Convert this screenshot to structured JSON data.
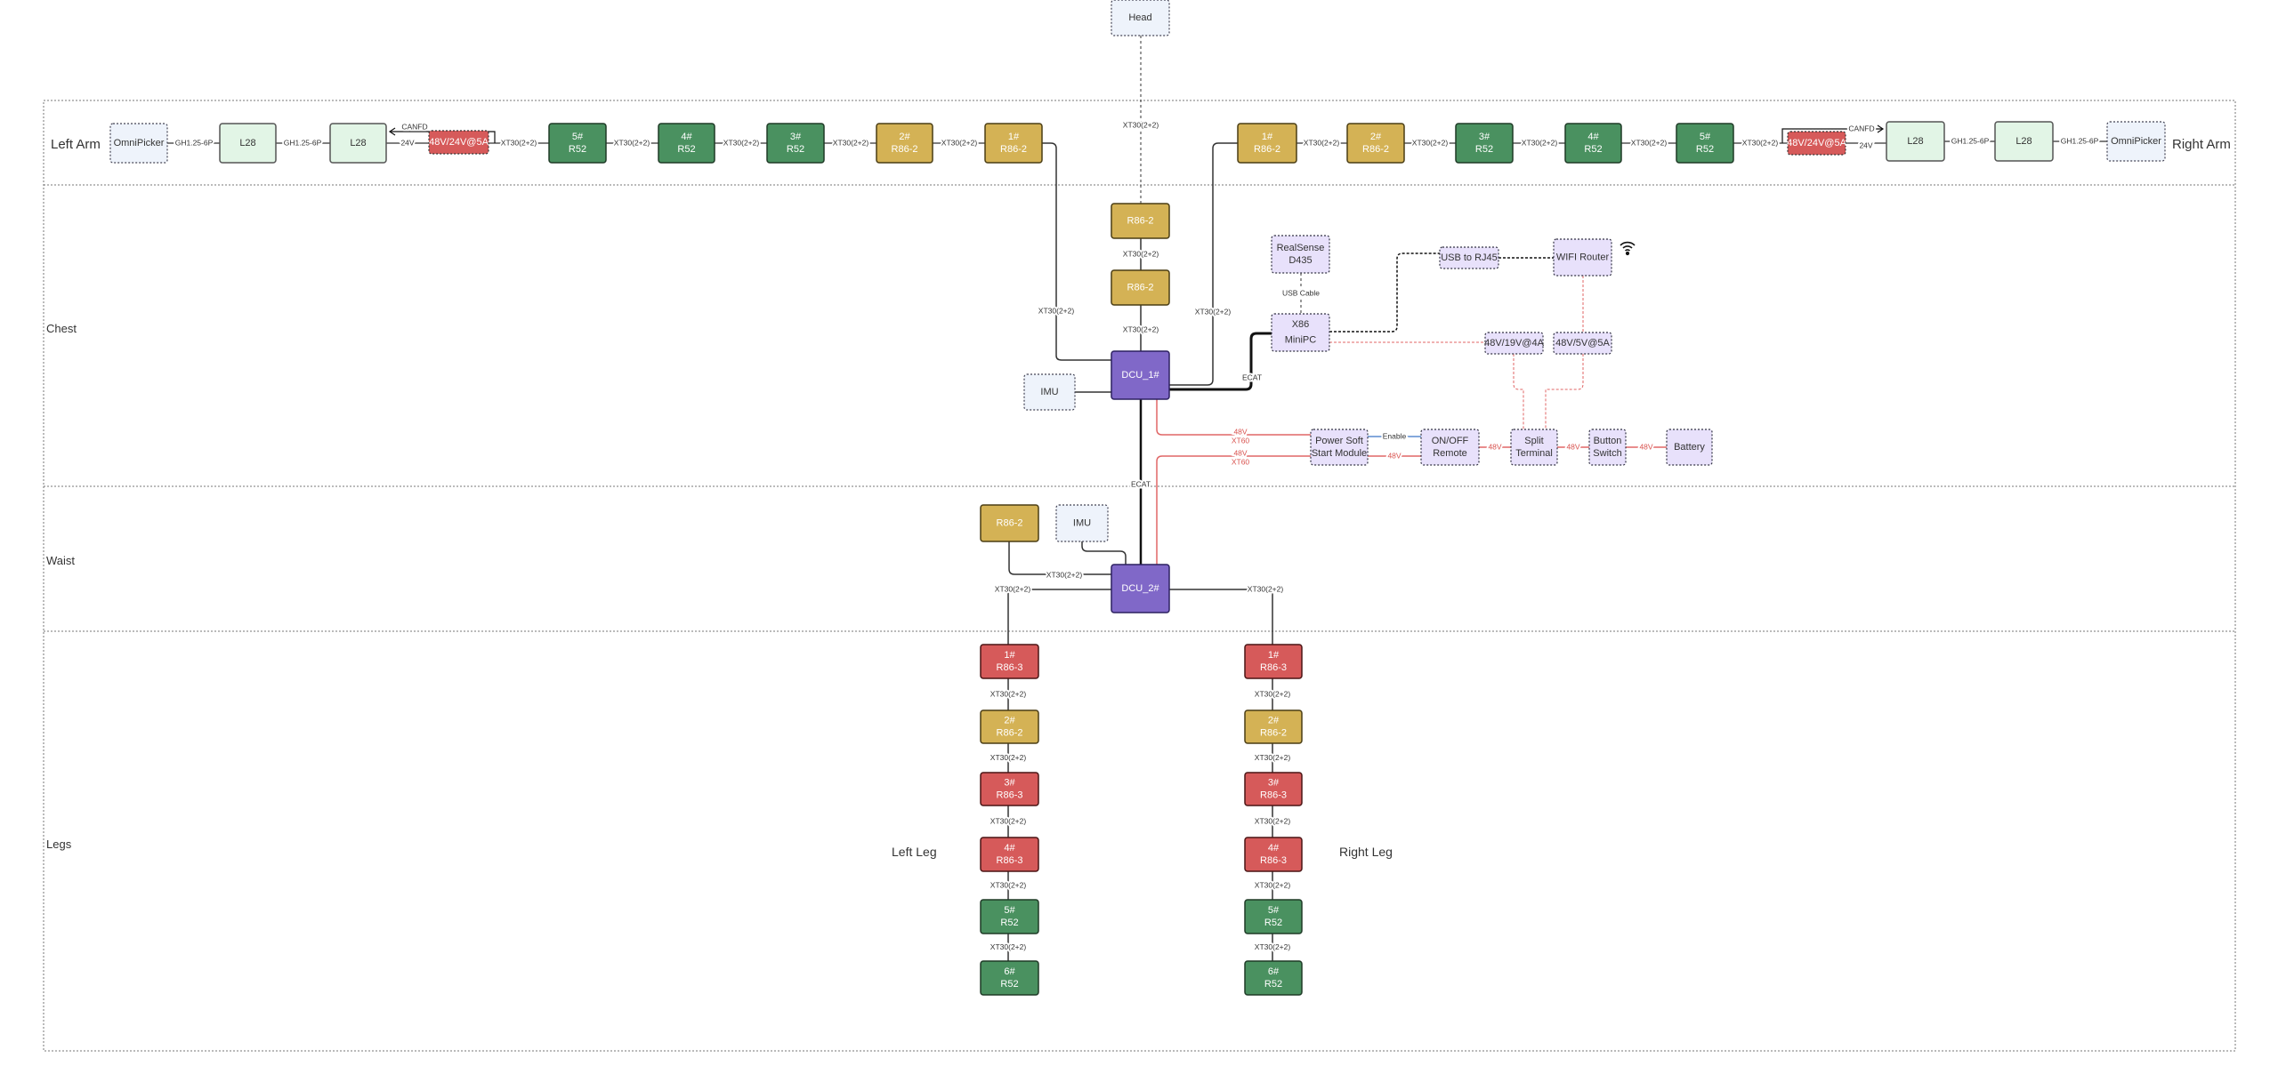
{
  "sections": {
    "left_arm": "Left Arm",
    "right_arm": "Right Arm",
    "chest": "Chest",
    "waist": "Waist",
    "legs": "Legs",
    "left_leg": "Left Leg",
    "right_leg": "Right Leg"
  },
  "colors": {
    "r52": "#4a9160",
    "r86_2": "#d4b255",
    "r86_3": "#d65a5a",
    "dcu": "#8068c8",
    "psu": "#d65a5a",
    "info": "#eef3fb",
    "l28": "#e2f5e6",
    "compute": "#e8e1fb",
    "power_line": "#e06666",
    "enable_line": "#5b8bd0"
  },
  "nodes": [
    {
      "id": "head",
      "lines": [
        "Head"
      ],
      "kind": "info"
    },
    {
      "id": "la_op",
      "lines": [
        "OmniPicker"
      ],
      "kind": "info"
    },
    {
      "id": "la_l28a",
      "lines": [
        "L28"
      ],
      "kind": "l28"
    },
    {
      "id": "la_l28b",
      "lines": [
        "L28"
      ],
      "kind": "l28"
    },
    {
      "id": "la_psu",
      "lines": [
        "48V/24V@5A"
      ],
      "kind": "psu"
    },
    {
      "id": "la_j5",
      "lines": [
        "5#",
        "R52"
      ],
      "kind": "r52"
    },
    {
      "id": "la_j4",
      "lines": [
        "4#",
        "R52"
      ],
      "kind": "r52"
    },
    {
      "id": "la_j3",
      "lines": [
        "3#",
        "R52"
      ],
      "kind": "r52"
    },
    {
      "id": "la_j2",
      "lines": [
        "2#",
        "R86-2"
      ],
      "kind": "r86_2"
    },
    {
      "id": "la_j1",
      "lines": [
        "1#",
        "R86-2"
      ],
      "kind": "r86_2"
    },
    {
      "id": "ra_j1",
      "lines": [
        "1#",
        "R86-2"
      ],
      "kind": "r86_2"
    },
    {
      "id": "ra_j2",
      "lines": [
        "2#",
        "R86-2"
      ],
      "kind": "r86_2"
    },
    {
      "id": "ra_j3",
      "lines": [
        "3#",
        "R52"
      ],
      "kind": "r52"
    },
    {
      "id": "ra_j4",
      "lines": [
        "4#",
        "R52"
      ],
      "kind": "r52"
    },
    {
      "id": "ra_j5",
      "lines": [
        "5#",
        "R52"
      ],
      "kind": "r52"
    },
    {
      "id": "ra_psu",
      "lines": [
        "48V/24V@5A"
      ],
      "kind": "psu"
    },
    {
      "id": "ra_l28a",
      "lines": [
        "L28"
      ],
      "kind": "l28"
    },
    {
      "id": "ra_l28b",
      "lines": [
        "L28"
      ],
      "kind": "l28"
    },
    {
      "id": "ra_op",
      "lines": [
        "OmniPicker"
      ],
      "kind": "info"
    },
    {
      "id": "chest_j1",
      "lines": [
        "R86-2"
      ],
      "kind": "r86_2"
    },
    {
      "id": "chest_j2",
      "lines": [
        "R86-2"
      ],
      "kind": "r86_2"
    },
    {
      "id": "dcu1",
      "lines": [
        "DCU_1#"
      ],
      "kind": "dcu"
    },
    {
      "id": "imu1",
      "lines": [
        "IMU"
      ],
      "kind": "info"
    },
    {
      "id": "realsense",
      "lines": [
        "RealSense",
        "D435"
      ],
      "kind": "compute"
    },
    {
      "id": "minipc",
      "lines": [
        "X86",
        "MiniPC"
      ],
      "kind": "compute"
    },
    {
      "id": "usb_rj45",
      "lines": [
        "USB to RJ45"
      ],
      "kind": "compute"
    },
    {
      "id": "wifi_router",
      "lines": [
        "WIFI Router"
      ],
      "kind": "compute"
    },
    {
      "id": "conv19",
      "lines": [
        "48V/19V@4A"
      ],
      "kind": "compute"
    },
    {
      "id": "conv5",
      "lines": [
        "48V/5V@5A"
      ],
      "kind": "compute"
    },
    {
      "id": "soft_start",
      "lines": [
        "Power Soft",
        "Start Module"
      ],
      "kind": "compute"
    },
    {
      "id": "onoff",
      "lines": [
        "ON/OFF",
        "Remote"
      ],
      "kind": "compute"
    },
    {
      "id": "split",
      "lines": [
        "Split",
        "Terminal"
      ],
      "kind": "compute"
    },
    {
      "id": "button",
      "lines": [
        "Button",
        "Switch"
      ],
      "kind": "compute"
    },
    {
      "id": "battery",
      "lines": [
        "Battery"
      ],
      "kind": "compute"
    },
    {
      "id": "waist_j",
      "lines": [
        "R86-2"
      ],
      "kind": "r86_2"
    },
    {
      "id": "imu2",
      "lines": [
        "IMU"
      ],
      "kind": "info"
    },
    {
      "id": "dcu2",
      "lines": [
        "DCU_2#"
      ],
      "kind": "dcu"
    },
    {
      "id": "ll1",
      "lines": [
        "1#",
        "R86-3"
      ],
      "kind": "r86_3"
    },
    {
      "id": "ll2",
      "lines": [
        "2#",
        "R86-2"
      ],
      "kind": "r86_2"
    },
    {
      "id": "ll3",
      "lines": [
        "3#",
        "R86-3"
      ],
      "kind": "r86_3"
    },
    {
      "id": "ll4",
      "lines": [
        "4#",
        "R86-3"
      ],
      "kind": "r86_3"
    },
    {
      "id": "ll5",
      "lines": [
        "5#",
        "R52"
      ],
      "kind": "r52"
    },
    {
      "id": "ll6",
      "lines": [
        "6#",
        "R52"
      ],
      "kind": "r52"
    },
    {
      "id": "rl1",
      "lines": [
        "1#",
        "R86-3"
      ],
      "kind": "r86_3"
    },
    {
      "id": "rl2",
      "lines": [
        "2#",
        "R86-2"
      ],
      "kind": "r86_2"
    },
    {
      "id": "rl3",
      "lines": [
        "3#",
        "R86-3"
      ],
      "kind": "r86_3"
    },
    {
      "id": "rl4",
      "lines": [
        "4#",
        "R86-3"
      ],
      "kind": "r86_3"
    },
    {
      "id": "rl5",
      "lines": [
        "5#",
        "R52"
      ],
      "kind": "r52"
    },
    {
      "id": "rl6",
      "lines": [
        "6#",
        "R52"
      ],
      "kind": "r52"
    }
  ],
  "edge_labels": [
    {
      "id": "la_gh1",
      "text": "GH1.25-6P"
    },
    {
      "id": "la_gh2",
      "text": "GH1.25-6P"
    },
    {
      "id": "la_24v",
      "text": "24V"
    },
    {
      "id": "la_canfd",
      "text": "CANFD"
    },
    {
      "id": "la_x1",
      "text": "XT30(2+2)"
    },
    {
      "id": "la_x2",
      "text": "XT30(2+2)"
    },
    {
      "id": "la_x3",
      "text": "XT30(2+2)"
    },
    {
      "id": "la_x4",
      "text": "XT30(2+2)"
    },
    {
      "id": "la_x5",
      "text": "XT30(2+2)"
    },
    {
      "id": "ra_x1",
      "text": "XT30(2+2)"
    },
    {
      "id": "ra_x2",
      "text": "XT30(2+2)"
    },
    {
      "id": "ra_x3",
      "text": "XT30(2+2)"
    },
    {
      "id": "ra_x4",
      "text": "XT30(2+2)"
    },
    {
      "id": "ra_x5",
      "text": "XT30(2+2)"
    },
    {
      "id": "ra_canfd",
      "text": "CANFD"
    },
    {
      "id": "ra_24v",
      "text": "24V"
    },
    {
      "id": "ra_gh1",
      "text": "GH1.25-6P"
    },
    {
      "id": "ra_gh2",
      "text": "GH1.25-6P"
    },
    {
      "id": "head_x",
      "text": "XT30(2+2)"
    },
    {
      "id": "chest_x1",
      "text": "XT30(2+2)"
    },
    {
      "id": "chest_x2",
      "text": "XT30(2+2)"
    },
    {
      "id": "larm_dcu_x",
      "text": "XT30(2+2)"
    },
    {
      "id": "rarm_dcu_x",
      "text": "XT30(2+2)"
    },
    {
      "id": "ecat_pc",
      "text": "ECAT"
    },
    {
      "id": "ecat_dcu",
      "text": "ECAT"
    },
    {
      "id": "usb_cable",
      "text": "USB Cable"
    },
    {
      "id": "p_48v_a",
      "text": "48V"
    },
    {
      "id": "p_xt60_a",
      "text": "XT60"
    },
    {
      "id": "p_48v_b",
      "text": "48V"
    },
    {
      "id": "p_xt60_b",
      "text": "XT60"
    },
    {
      "id": "enable",
      "text": "Enable"
    },
    {
      "id": "p_48v_c",
      "text": "48V"
    },
    {
      "id": "p_48v_d",
      "text": "48V"
    },
    {
      "id": "p_48v_e",
      "text": "48V"
    },
    {
      "id": "p_48v_f",
      "text": "48V"
    },
    {
      "id": "waist_x1",
      "text": "XT30(2+2)"
    },
    {
      "id": "waist_x2",
      "text": "XT30(2+2)"
    },
    {
      "id": "waist_x3",
      "text": "XT30(2+2)"
    },
    {
      "id": "ll_x1",
      "text": "XT30(2+2)"
    },
    {
      "id": "ll_x2",
      "text": "XT30(2+2)"
    },
    {
      "id": "ll_x3",
      "text": "XT30(2+2)"
    },
    {
      "id": "ll_x4",
      "text": "XT30(2+2)"
    },
    {
      "id": "ll_x5",
      "text": "XT30(2+2)"
    },
    {
      "id": "rl_x1",
      "text": "XT30(2+2)"
    },
    {
      "id": "rl_x2",
      "text": "XT30(2+2)"
    },
    {
      "id": "rl_x3",
      "text": "XT30(2+2)"
    },
    {
      "id": "rl_x4",
      "text": "XT30(2+2)"
    },
    {
      "id": "rl_x5",
      "text": "XT30(2+2)"
    }
  ],
  "icons": {
    "wifi": "wifi-icon"
  }
}
